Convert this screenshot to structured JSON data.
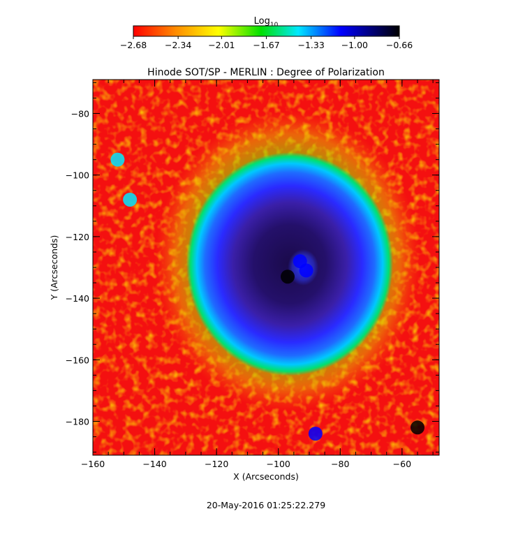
{
  "chart_data": {
    "type": "heatmap",
    "title": "Hinode SOT/SP - MERLIN : Degree of Polarization",
    "xlabel": "X (Arcseconds)",
    "ylabel": "Y (Arcseconds)",
    "xlim": [
      -160,
      -48
    ],
    "ylim": [
      -191,
      -69
    ],
    "x_ticks": [
      -160,
      -140,
      -120,
      -100,
      -80,
      -60
    ],
    "y_ticks": [
      -80,
      -100,
      -120,
      -140,
      -160,
      -180
    ],
    "x_tick_labels": [
      "−160",
      "−140",
      "−120",
      "−100",
      "−80",
      "−60"
    ],
    "y_tick_labels": [
      "−80",
      "−100",
      "−120",
      "−140",
      "−160",
      "−180"
    ],
    "colorbar": {
      "label_main": "Log",
      "label_sub": "10",
      "range": [
        -2.68,
        -0.66
      ],
      "ticks": [
        -2.68,
        -2.34,
        -2.01,
        -1.67,
        -1.33,
        -1.0,
        -0.66
      ],
      "tick_labels": [
        "−2.68",
        "−2.34",
        "−2.01",
        "−1.67",
        "−1.33",
        "−1.00",
        "−0.66"
      ],
      "colors": [
        "#ff0000",
        "#ff8c00",
        "#ffff00",
        "#00e000",
        "#00e8ff",
        "#0000ff",
        "#000000"
      ]
    },
    "features": [
      {
        "x": -93,
        "y": -128,
        "value": -0.9
      },
      {
        "x": -97,
        "y": -133,
        "value": -0.7
      },
      {
        "x": -91,
        "y": -131,
        "value": -1.1
      },
      {
        "x": -55,
        "y": -182,
        "value": -0.8
      },
      {
        "x": -88,
        "y": -184,
        "value": -1.0
      },
      {
        "x": -152,
        "y": -95,
        "value": -1.4
      },
      {
        "x": -148,
        "y": -108,
        "value": -1.5
      }
    ],
    "footer": "20-May-2016 01:25:22.279"
  }
}
